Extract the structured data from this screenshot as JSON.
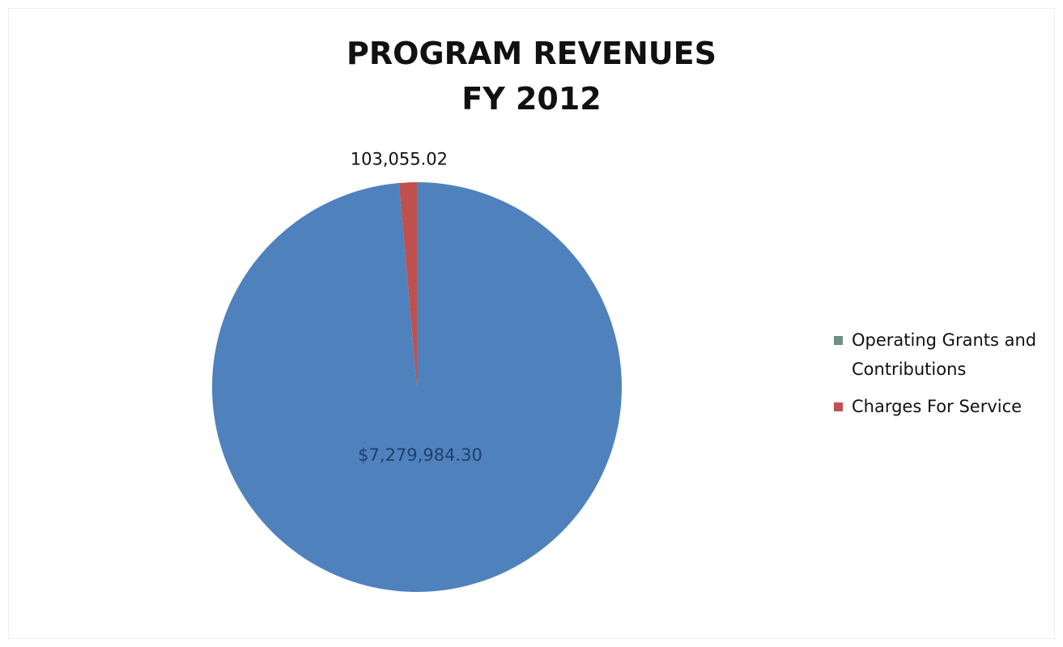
{
  "chart_data": {
    "type": "pie",
    "title": [
      "PROGRAM REVENUES",
      "FY 2012"
    ],
    "slices": [
      {
        "name": "Operating Grants and Contributions",
        "value": 7279984.3,
        "label": "$7,279,984.30",
        "color": "#4f81bd",
        "legend_color": "#6e8f86"
      },
      {
        "name": "Charges For Service",
        "value": 103055.02,
        "label": "103,055.02",
        "color": "#c0504d",
        "legend_color": "#c0504d"
      }
    ],
    "legend_position": "right",
    "start_angle_deg": 0,
    "direction": "clockwise"
  },
  "legend": {
    "items": [
      {
        "label": "Operating Grants and Contributions"
      },
      {
        "label": "Charges For Service"
      }
    ]
  }
}
